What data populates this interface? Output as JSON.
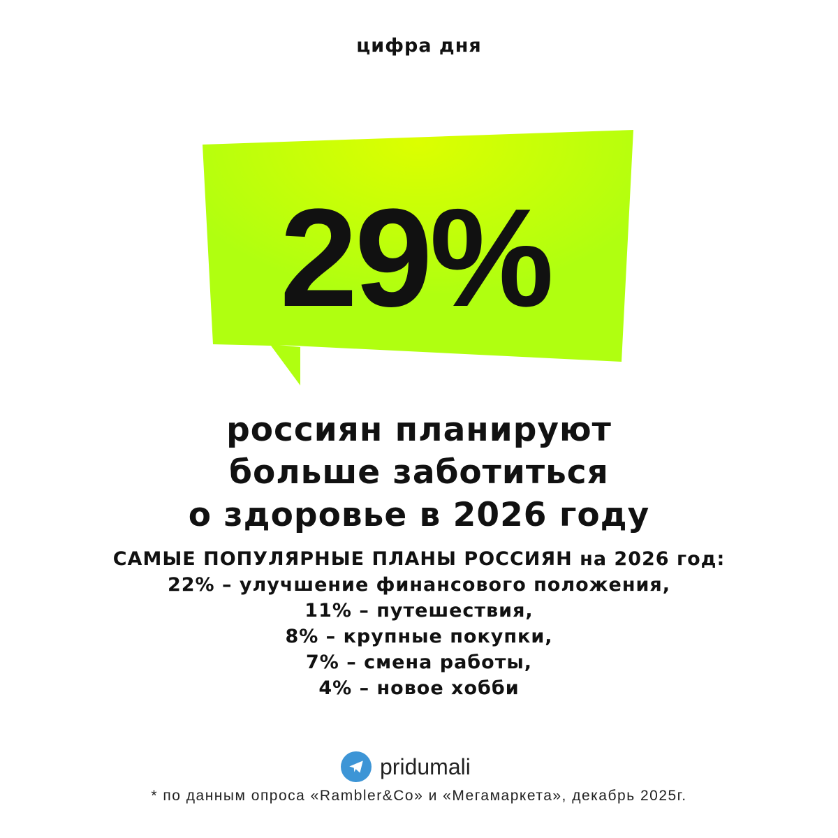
{
  "kicker": "цифра дня",
  "bubble": {
    "value": "29%",
    "colors": {
      "light": "#d8ff00",
      "main": "#b2ff0f"
    }
  },
  "headline": [
    "россиян планируют",
    "больше заботиться",
    "о здоровье в 2026 году"
  ],
  "plans": {
    "title": "САМЫЕ ПОПУЛЯРНЫЕ ПЛАНЫ РОССИЯН на 2026 год:",
    "items": [
      "22% – улучшение финансового положения,",
      "11% – путешествия,",
      "8% – крупные покупки,",
      "7% – смена работы,",
      "4% – новое хобби"
    ]
  },
  "brand": {
    "icon": "telegram-icon",
    "name": "pridumali",
    "color": "#3d95d6"
  },
  "footnote": "* по данным опроса «Rambler&Co» и «Мегамаркета», декабрь 2025г."
}
